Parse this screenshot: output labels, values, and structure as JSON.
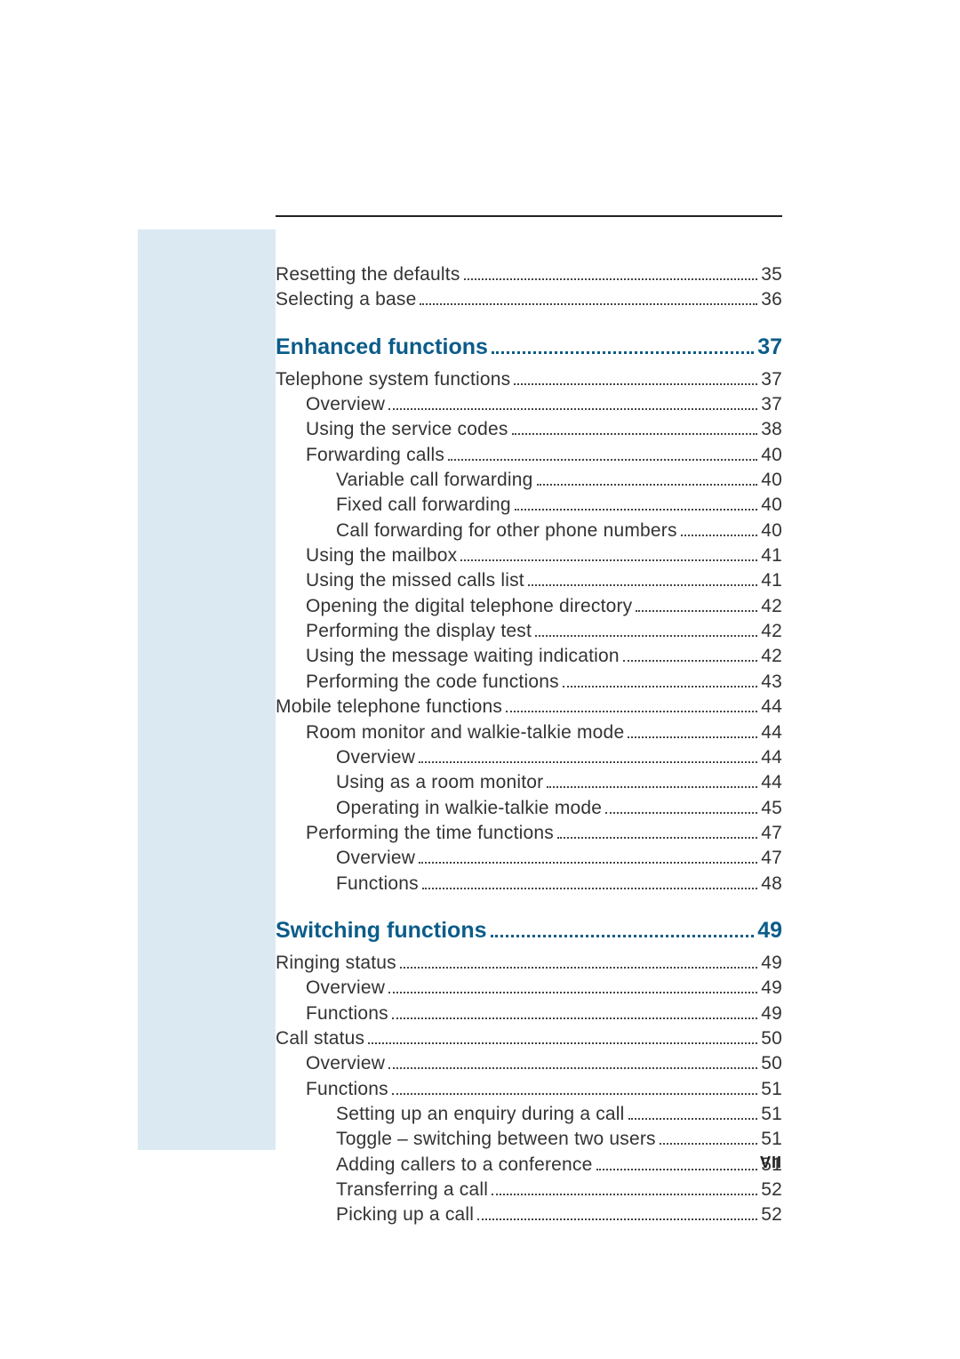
{
  "page_number": "VII",
  "hr_color": "#222222",
  "sidebar_color": "#dbe9f2",
  "text_color": "#333333",
  "heading_color": "#0b5c8a",
  "body_font_size": 21,
  "heading_font_size": 25,
  "before_sections": [
    {
      "label": "Resetting the defaults",
      "page": "35",
      "indent": 0
    },
    {
      "label": "Selecting a base",
      "page": "36",
      "indent": 0
    }
  ],
  "sections": [
    {
      "title": "Enhanced functions",
      "page": "37",
      "entries": [
        {
          "label": "Telephone system functions",
          "page": "37",
          "indent": 0
        },
        {
          "label": "Overview",
          "page": "37",
          "indent": 1
        },
        {
          "label": "Using the service codes",
          "page": "38",
          "indent": 1
        },
        {
          "label": "Forwarding calls",
          "page": "40",
          "indent": 1
        },
        {
          "label": "Variable call forwarding",
          "page": "40",
          "indent": 2
        },
        {
          "label": "Fixed call forwarding",
          "page": "40",
          "indent": 2
        },
        {
          "label": "Call forwarding for other phone numbers",
          "page": "40",
          "indent": 2
        },
        {
          "label": "Using the mailbox",
          "page": "41",
          "indent": 1
        },
        {
          "label": "Using the missed calls list",
          "page": "41",
          "indent": 1
        },
        {
          "label": "Opening the digital telephone directory",
          "page": "42",
          "indent": 1
        },
        {
          "label": "Performing the display test",
          "page": "42",
          "indent": 1
        },
        {
          "label": "Using the message waiting indication",
          "page": "42",
          "indent": 1
        },
        {
          "label": "Performing the code functions",
          "page": "43",
          "indent": 1
        },
        {
          "label": "Mobile telephone functions",
          "page": "44",
          "indent": 0
        },
        {
          "label": "Room monitor and walkie-talkie mode",
          "page": "44",
          "indent": 1
        },
        {
          "label": "Overview",
          "page": "44",
          "indent": 2
        },
        {
          "label": "Using as a room monitor",
          "page": "44",
          "indent": 2
        },
        {
          "label": "Operating in walkie-talkie mode",
          "page": "45",
          "indent": 2
        },
        {
          "label": "Performing the time functions",
          "page": "47",
          "indent": 1
        },
        {
          "label": "Overview",
          "page": "47",
          "indent": 2
        },
        {
          "label": "Functions",
          "page": "48",
          "indent": 2
        }
      ]
    },
    {
      "title": "Switching functions",
      "page": "49",
      "entries": [
        {
          "label": "Ringing status",
          "page": "49",
          "indent": 0
        },
        {
          "label": "Overview",
          "page": "49",
          "indent": 1
        },
        {
          "label": "Functions",
          "page": "49",
          "indent": 1
        },
        {
          "label": "Call status",
          "page": "50",
          "indent": 0
        },
        {
          "label": "Overview",
          "page": "50",
          "indent": 1
        },
        {
          "label": "Functions",
          "page": "51",
          "indent": 1
        },
        {
          "label": "Setting up an enquiry during a call",
          "page": "51",
          "indent": 2
        },
        {
          "label": "Toggle – switching between two users",
          "page": "51",
          "indent": 2
        },
        {
          "label": "Adding callers to a conference",
          "page": "51",
          "indent": 2
        },
        {
          "label": "Transferring a call",
          "page": "52",
          "indent": 2
        },
        {
          "label": "Picking up a call",
          "page": "52",
          "indent": 2
        }
      ]
    }
  ]
}
